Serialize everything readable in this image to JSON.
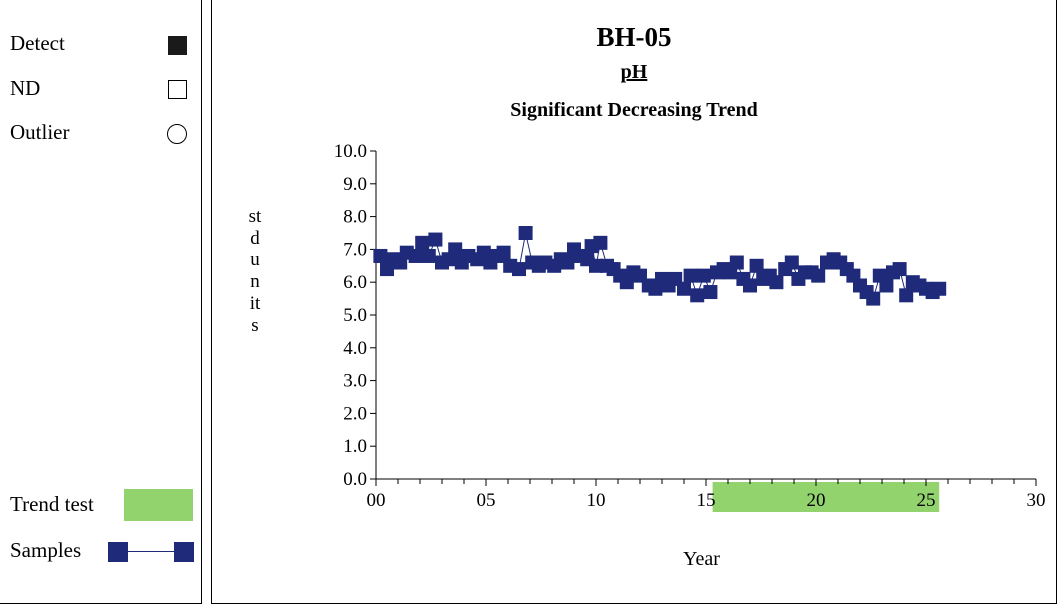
{
  "legend": {
    "detect": "Detect",
    "nd": "ND",
    "outlier": "Outlier",
    "trend_test": "Trend test",
    "samples": "Samples"
  },
  "colors": {
    "samples": "#1f2a7a",
    "trend_test": "#92d36e",
    "detect": "#1a1a1a"
  },
  "chart_data": {
    "type": "scatter",
    "title": "BH-05",
    "subtitle": "pH",
    "annotation": "Significant Decreasing Trend",
    "ylabel": "std units",
    "xlabel": "Year",
    "xlim": [
      0,
      30
    ],
    "ylim": [
      0,
      10
    ],
    "x_ticks": [
      "00",
      "05",
      "10",
      "15",
      "20",
      "25",
      "30"
    ],
    "y_ticks": [
      "0.0",
      "1.0",
      "2.0",
      "3.0",
      "4.0",
      "5.0",
      "6.0",
      "7.0",
      "8.0",
      "9.0",
      "10.0"
    ],
    "trend_test_period": [
      15.3,
      25.6
    ],
    "series": [
      {
        "name": "Samples",
        "x": [
          0.2,
          0.5,
          0.8,
          1.1,
          1.4,
          1.8,
          2.1,
          2.4,
          2.7,
          3.0,
          3.3,
          3.6,
          3.9,
          4.2,
          4.6,
          4.9,
          5.2,
          5.5,
          5.8,
          6.1,
          6.5,
          6.8,
          7.1,
          7.4,
          7.7,
          8.1,
          8.4,
          8.7,
          9.0,
          9.3,
          9.6,
          9.8,
          10.0,
          10.2,
          10.5,
          10.8,
          11.1,
          11.4,
          11.7,
          12.0,
          12.4,
          12.7,
          13.0,
          13.3,
          13.6,
          14.0,
          14.3,
          14.6,
          14.9,
          15.2,
          15.5,
          15.8,
          16.1,
          16.4,
          16.7,
          17.0,
          17.3,
          17.6,
          17.9,
          18.2,
          18.6,
          18.9,
          19.2,
          19.5,
          19.8,
          20.1,
          20.5,
          20.8,
          21.1,
          21.4,
          21.7,
          22.0,
          22.3,
          22.6,
          22.9,
          23.2,
          23.5,
          23.8,
          24.1,
          24.4,
          24.7,
          25.0,
          25.3,
          25.6
        ],
        "y": [
          6.8,
          6.4,
          6.7,
          6.6,
          6.9,
          6.8,
          7.2,
          6.8,
          7.3,
          6.6,
          6.7,
          7.0,
          6.6,
          6.8,
          6.7,
          6.9,
          6.6,
          6.8,
          6.9,
          6.5,
          6.4,
          7.5,
          6.6,
          6.5,
          6.6,
          6.5,
          6.7,
          6.6,
          7.0,
          6.8,
          6.7,
          7.1,
          6.5,
          7.2,
          6.5,
          6.4,
          6.2,
          6.0,
          6.3,
          6.2,
          5.9,
          5.8,
          6.1,
          5.9,
          6.1,
          5.8,
          6.2,
          5.6,
          6.2,
          5.7,
          6.3,
          6.4,
          6.3,
          6.6,
          6.1,
          5.9,
          6.5,
          6.1,
          6.2,
          6.0,
          6.4,
          6.6,
          6.1,
          6.3,
          6.3,
          6.2,
          6.6,
          6.7,
          6.6,
          6.4,
          6.2,
          5.9,
          5.7,
          5.5,
          6.2,
          5.9,
          6.3,
          6.4,
          5.6,
          6.0,
          5.9,
          5.8,
          5.7,
          5.8
        ]
      }
    ]
  }
}
